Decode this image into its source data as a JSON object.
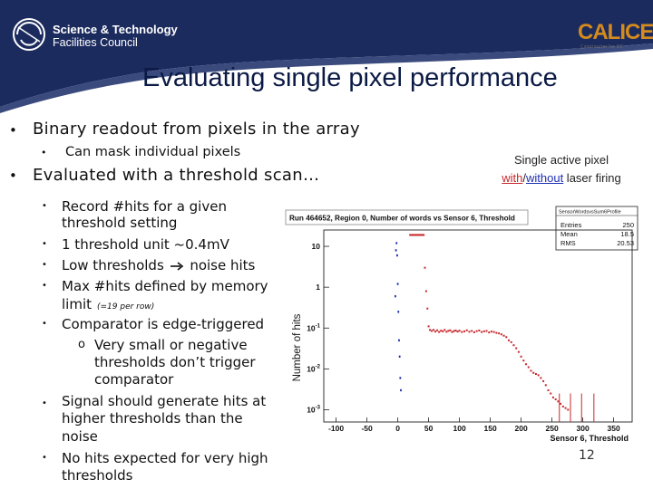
{
  "header": {
    "org_line1": "Science & Technology",
    "org_line2": "Facilities Council",
    "calice_logo": "CALICE",
    "calice_sub": "Calorimeter for ILC"
  },
  "slide": {
    "title": "Evaluating single pixel performance",
    "page_number": "12"
  },
  "bullets": {
    "b1": "Binary readout from pixels in the array",
    "b1_sub": "Can mask individual pixels",
    "b2": "Evaluated with a threshold scan…",
    "items": [
      "Record #hits for a given",
      "threshold setting",
      "1 threshold unit ~0.4mV",
      "Low thresholds",
      "noise hits",
      "Max #hits defined by memory",
      "limit",
      "(=19 per row)",
      "Comparator is edge-triggered",
      "Very small or negative",
      "thresholds don’t trigger",
      "comparator",
      "Signal should generate hits at",
      "higher thresholds than the",
      "noise",
      "No hits expected for very high",
      "thresholds"
    ],
    "arrow_icon": "right-arrow-icon"
  },
  "caption": {
    "line1": "Single active pixel",
    "with": "with",
    "slash": "/",
    "without": "without",
    "rest": " laser firing"
  },
  "plot": {
    "title": "Run 464652, Region 0, Number of words vs Sensor 6, Threshold",
    "stats_name": "SensorWordsvsSum6Profile",
    "stats": [
      {
        "label": "Entries",
        "value": "250"
      },
      {
        "label": "Mean",
        "value": "18.5"
      },
      {
        "label": "RMS",
        "value": "20.53"
      }
    ]
  },
  "chart_data": {
    "type": "scatter",
    "title": "Run 464652, Region 0, Number of words vs Sensor 6, Threshold",
    "xlabel": "Sensor 6, Threshold",
    "ylabel": "Number of hits",
    "xlim": [
      -120,
      380
    ],
    "ylim_log10": [
      -3.3,
      1.4
    ],
    "yscale": "log",
    "xticks": [
      -100,
      -50,
      0,
      50,
      100,
      150,
      200,
      250,
      300,
      350
    ],
    "ytick_labels": [
      "10",
      "1",
      "10^-1",
      "10^-2",
      "10^-3"
    ],
    "yticks_log10": [
      1,
      0,
      -1,
      -2,
      -3
    ],
    "colors": {
      "with": "#c8272b",
      "without": "#1d2fb3"
    },
    "series": [
      {
        "name": "with laser firing",
        "x": [
          20,
          22,
          24,
          26,
          28,
          30,
          32,
          34,
          36,
          38,
          40,
          42,
          44,
          46,
          48,
          50,
          52,
          55,
          58,
          61,
          64,
          67,
          70,
          73,
          76,
          79,
          82,
          85,
          88,
          91,
          94,
          97,
          100,
          104,
          108,
          112,
          116,
          120,
          124,
          128,
          132,
          136,
          140,
          144,
          148,
          152,
          156,
          160,
          164,
          168,
          172,
          176,
          180,
          184,
          188,
          192,
          196,
          200,
          204,
          208,
          212,
          216,
          220,
          224,
          228,
          232,
          236,
          240,
          244,
          248,
          252,
          256,
          260,
          264,
          268,
          272,
          276
        ],
        "y": [
          19,
          19,
          19,
          19,
          19,
          19,
          19,
          19,
          19,
          19,
          19,
          19,
          3.0,
          0.8,
          0.3,
          0.11,
          0.09,
          0.085,
          0.09,
          0.082,
          0.088,
          0.08,
          0.086,
          0.083,
          0.09,
          0.081,
          0.085,
          0.088,
          0.08,
          0.084,
          0.087,
          0.082,
          0.086,
          0.08,
          0.083,
          0.088,
          0.081,
          0.085,
          0.079,
          0.084,
          0.087,
          0.08,
          0.083,
          0.085,
          0.078,
          0.082,
          0.08,
          0.076,
          0.074,
          0.07,
          0.065,
          0.06,
          0.05,
          0.045,
          0.038,
          0.032,
          0.026,
          0.02,
          0.016,
          0.013,
          0.011,
          0.009,
          0.008,
          0.0075,
          0.007,
          0.006,
          0.005,
          0.004,
          0.003,
          0.0025,
          0.002,
          0.0018,
          0.0016,
          0.0014,
          0.0012,
          0.0011,
          0.001
        ]
      },
      {
        "name": "without laser firing",
        "x": [
          -4,
          -3,
          -2,
          -1,
          0,
          1,
          2,
          3,
          4,
          5
        ],
        "y": [
          0.6,
          8,
          12,
          6,
          1.2,
          0.25,
          0.05,
          0.02,
          0.006,
          0.003
        ]
      }
    ],
    "error_bars_x": [
      262,
      280,
      298,
      318
    ]
  }
}
